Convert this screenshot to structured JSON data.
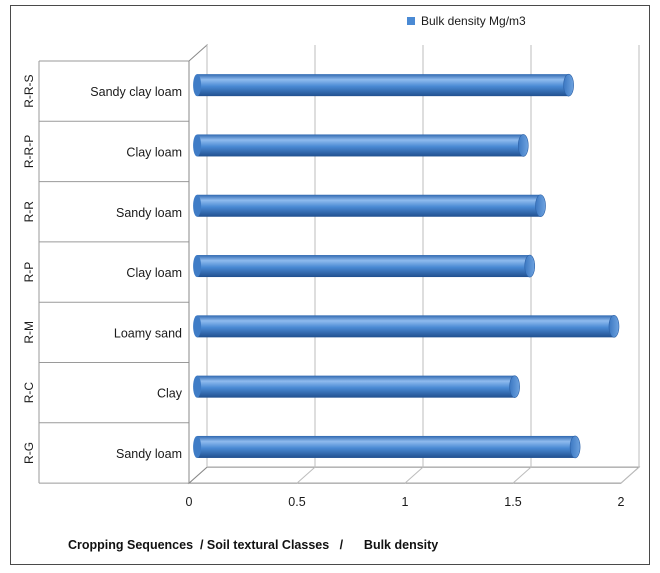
{
  "chart_data": {
    "type": "bar",
    "orientation": "horizontal",
    "cropping_sequences": [
      "R-G",
      "R-C",
      "R-M",
      "R-P",
      "R-R",
      "R-R-P",
      "R-R-S"
    ],
    "categories": [
      "Sandy loam",
      "Clay",
      "Loamy sand",
      "Clay loam",
      "Sandy loam",
      "Clay loam",
      "Sandy clay loam"
    ],
    "series": [
      {
        "name": "Bulk density Mg/m3",
        "values": [
          1.75,
          1.47,
          1.93,
          1.54,
          1.59,
          1.51,
          1.72
        ]
      }
    ],
    "xlim": [
      0,
      2
    ],
    "xticks": [
      "0",
      "0.5",
      "1",
      "1.5",
      "2"
    ],
    "grid": true,
    "legend_position": "top-right",
    "caption": "Cropping Sequences  / Soil textural Classes   /      Bulk density",
    "colors": {
      "bar": "#4a8ad4",
      "bar_dark": "#2d62a8",
      "bar_light": "#8fbbee",
      "grid": "#bdbdbd",
      "frame": "#4a4a4a"
    }
  }
}
